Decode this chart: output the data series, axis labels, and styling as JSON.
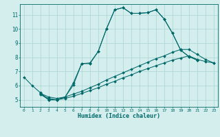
{
  "xlabel": "Humidex (Indice chaleur)",
  "bg_color": "#d4eeee",
  "line_color": "#006868",
  "grid_color": "#aad4d4",
  "xlim": [
    -0.5,
    23.5
  ],
  "ylim": [
    4.5,
    11.75
  ],
  "xticks": [
    0,
    1,
    2,
    3,
    4,
    5,
    6,
    7,
    8,
    9,
    10,
    11,
    12,
    13,
    14,
    15,
    16,
    17,
    18,
    19,
    20,
    21,
    22,
    23
  ],
  "yticks": [
    5,
    6,
    7,
    8,
    9,
    10,
    11
  ],
  "series0_x": [
    0,
    1,
    2,
    3,
    4,
    5,
    6,
    7,
    8,
    9,
    10,
    11,
    12,
    13,
    14,
    15,
    16,
    17,
    18,
    19,
    20,
    21
  ],
  "series0_y": [
    6.6,
    6.0,
    5.5,
    5.0,
    5.0,
    5.2,
    6.2,
    7.55,
    7.6,
    8.4,
    10.0,
    11.35,
    11.5,
    11.1,
    11.1,
    11.15,
    11.35,
    10.7,
    9.7,
    8.5,
    8.05,
    7.8
  ],
  "series1_x": [
    2,
    3,
    4,
    5,
    6,
    7,
    8,
    9,
    10,
    11,
    12,
    13,
    14,
    15,
    16,
    17,
    18,
    19,
    20,
    21
  ],
  "series1_y": [
    5.4,
    5.0,
    5.0,
    5.2,
    6.05,
    7.55,
    7.55,
    8.4,
    10.0,
    11.35,
    11.5,
    11.1,
    11.1,
    11.15,
    11.35,
    10.7,
    9.7,
    8.5,
    8.05,
    7.8
  ],
  "series2_x": [
    2,
    3,
    4,
    5,
    6,
    7,
    8,
    9,
    10,
    11,
    12,
    13,
    14,
    15,
    16,
    17,
    18,
    19,
    20,
    21,
    22,
    23
  ],
  "series2_y": [
    5.35,
    5.1,
    5.0,
    5.1,
    5.25,
    5.45,
    5.65,
    5.85,
    6.1,
    6.3,
    6.55,
    6.75,
    7.0,
    7.2,
    7.4,
    7.6,
    7.8,
    7.95,
    8.1,
    7.85,
    7.7,
    7.6
  ],
  "series3_x": [
    2,
    3,
    4,
    5,
    6,
    7,
    8,
    9,
    10,
    11,
    12,
    13,
    14,
    15,
    16,
    17,
    18,
    19,
    20,
    21,
    22,
    23
  ],
  "series3_y": [
    5.45,
    5.2,
    5.1,
    5.2,
    5.4,
    5.6,
    5.85,
    6.1,
    6.4,
    6.65,
    6.9,
    7.15,
    7.4,
    7.65,
    7.9,
    8.1,
    8.35,
    8.55,
    8.55,
    8.2,
    7.85,
    7.6
  ]
}
